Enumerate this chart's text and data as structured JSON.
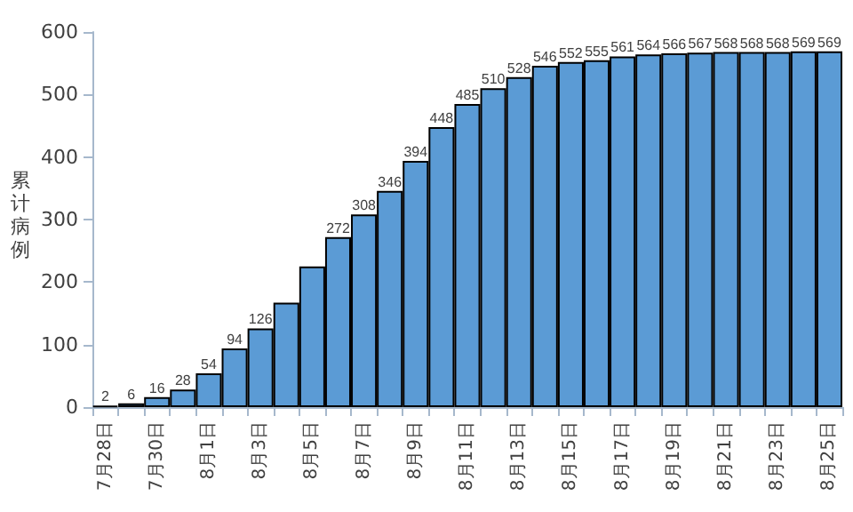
{
  "chart_data": {
    "type": "bar",
    "ylabel": "累计病例",
    "categories": [
      "7月28日",
      null,
      "7月30日",
      null,
      "8月1日",
      null,
      "8月3日",
      null,
      "8月5日",
      null,
      "8月7日",
      null,
      "8月9日",
      null,
      "8月11日",
      null,
      "8月13日",
      null,
      "8月15日",
      null,
      "8月17日",
      null,
      "8月19日",
      null,
      "8月21日",
      null,
      "8月23日",
      null,
      "8月25日"
    ],
    "values": [
      2,
      6,
      16,
      28,
      54,
      94,
      126,
      167,
      225,
      272,
      308,
      346,
      394,
      448,
      485,
      510,
      528,
      546,
      552,
      555,
      561,
      564,
      566,
      567,
      568,
      568,
      568,
      569,
      569
    ],
    "value_labels": [
      "2",
      "6",
      "16",
      "28",
      "54",
      "94",
      "126",
      null,
      null,
      "272",
      "308",
      "346",
      "394",
      "448",
      "485",
      "510",
      "528",
      "546",
      "552",
      "555",
      "561",
      "564",
      "566",
      "567",
      "568",
      "568",
      "568",
      "569",
      "569"
    ],
    "color": "#5b9bd5",
    "ylim": [
      0,
      600
    ],
    "yticks": [
      0,
      100,
      200,
      300,
      400,
      500,
      600
    ],
    "grid": false
  }
}
